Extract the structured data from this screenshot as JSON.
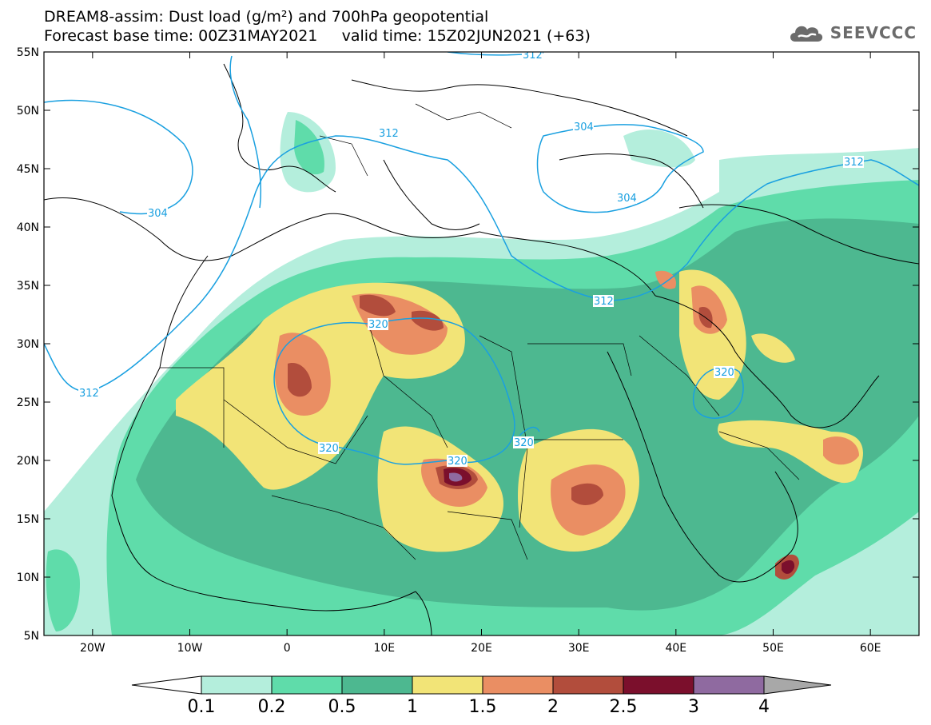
{
  "title": {
    "line1": "DREAM8-assim: Dust load (g/m²) and 700hPa geopotential",
    "line2": "Forecast base time: 00Z31MAY2021     valid time: 15Z02JUN2021 (+63)"
  },
  "logo": {
    "text": "SEEVCCC",
    "icon": "cloud-icon"
  },
  "map": {
    "lat_ticks": [
      "55N",
      "50N",
      "45N",
      "40N",
      "35N",
      "30N",
      "25N",
      "20N",
      "15N",
      "10N",
      "5N"
    ],
    "lon_ticks": [
      "20W",
      "10W",
      "0",
      "10E",
      "20E",
      "30E",
      "40E",
      "50E",
      "60E"
    ],
    "lat_range": [
      5,
      55
    ],
    "lon_range": [
      -25,
      65
    ],
    "contour_labels": [
      "312",
      "304",
      "312",
      "304",
      "304",
      "312",
      "312",
      "320",
      "320",
      "320",
      "320",
      "320",
      "312"
    ]
  },
  "colorbar": {
    "labels": [
      "0.1",
      "0.2",
      "0.5",
      "1",
      "1.5",
      "2",
      "2.5",
      "3",
      "4"
    ],
    "colors": [
      "#b4eedc",
      "#5fdcaa",
      "#4db890",
      "#f2e477",
      "#ea8e63",
      "#b24d3c",
      "#7b0f2c",
      "#8f6aa0",
      "#a8a8a8"
    ],
    "under_color": "#ffffff"
  },
  "colors": {
    "contour": "#1aa0e0",
    "land_outline": "#000000",
    "c01": "#b4eedc",
    "c02": "#5fdcaa",
    "c05": "#4db890",
    "c1": "#f2e477",
    "c15": "#ea8e63",
    "c2": "#b24d3c",
    "c25": "#7b0f2c",
    "c3": "#8f6aa0"
  }
}
